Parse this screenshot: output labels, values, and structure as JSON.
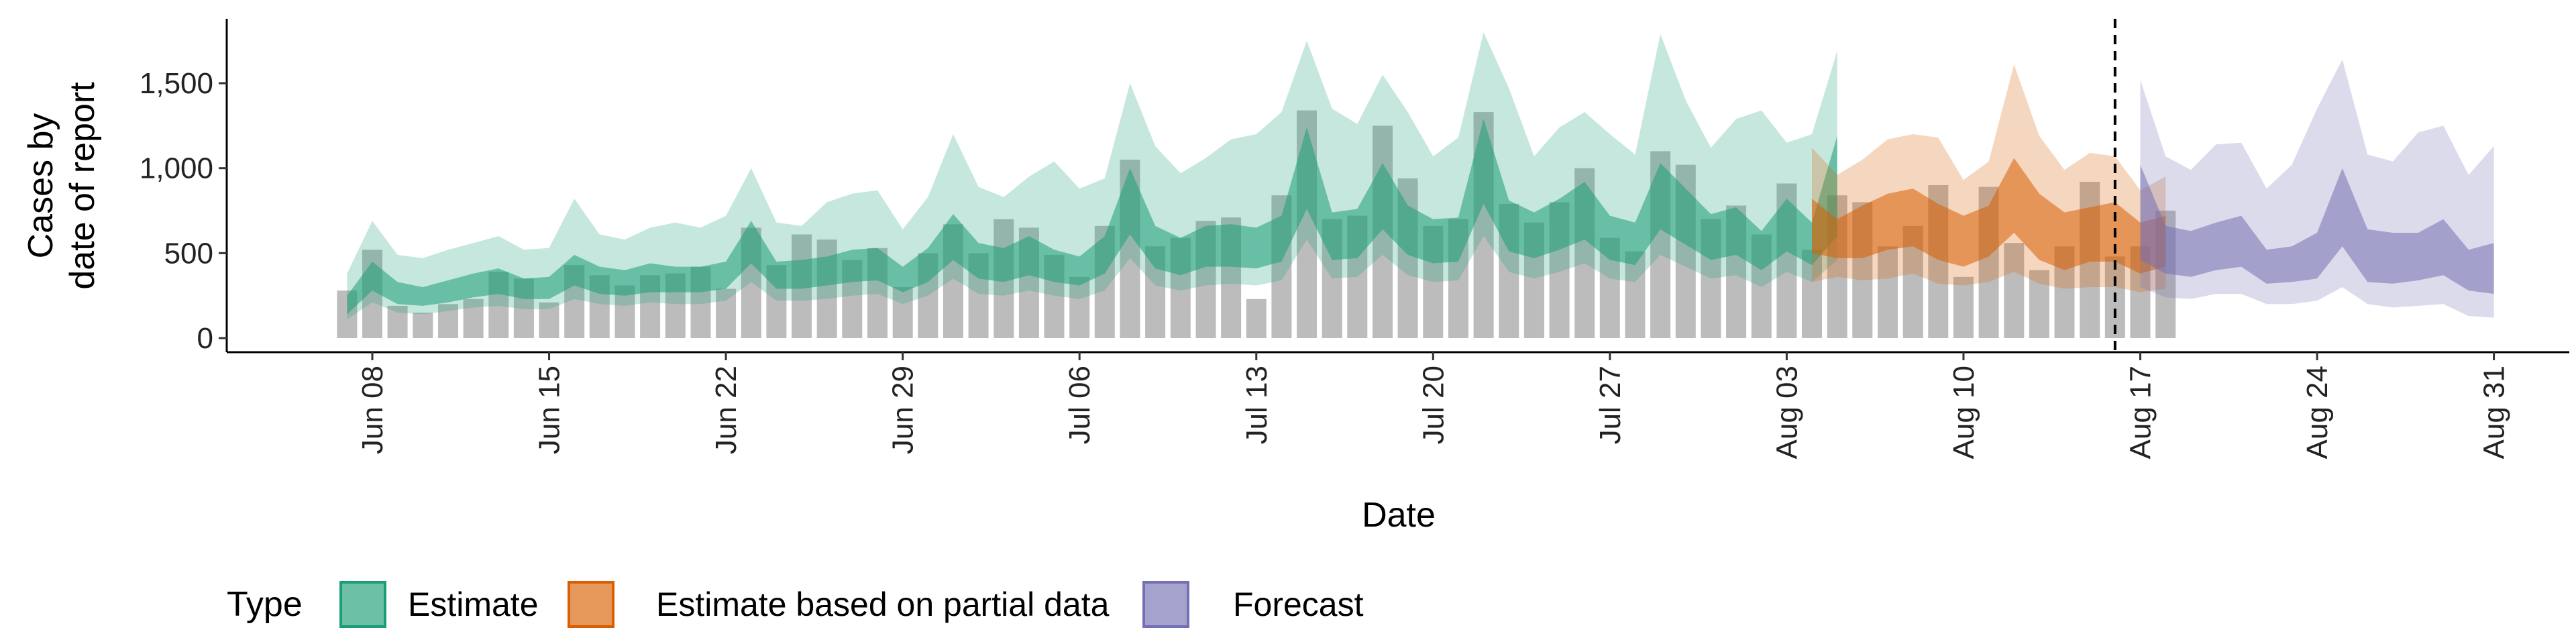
{
  "chart_data": {
    "type": "area",
    "xlabel": "Date",
    "ylabel": [
      "Cases by",
      "date of report"
    ],
    "ylim": [
      0,
      1870
    ],
    "xlim": [
      "2020-06-03",
      "2020-09-01"
    ],
    "y_ticks": [
      0,
      500,
      1000,
      1500
    ],
    "y_tick_labels": [
      "0",
      "500",
      "1,000",
      "1,500"
    ],
    "x_ticks": [
      "2020-06-08",
      "2020-06-15",
      "2020-06-22",
      "2020-06-29",
      "2020-07-06",
      "2020-07-13",
      "2020-07-20",
      "2020-07-27",
      "2020-08-03",
      "2020-08-10",
      "2020-08-17",
      "2020-08-24",
      "2020-08-31"
    ],
    "x_tick_labels": [
      "Jun 08",
      "Jun 15",
      "Jun 22",
      "Jun 29",
      "Jul 06",
      "Jul 13",
      "Jul 20",
      "Jul 27",
      "Aug 03",
      "Aug 10",
      "Aug 17",
      "Aug 24",
      "Aug 31"
    ],
    "vline_date": "2020-08-16",
    "grid": false,
    "legend": {
      "title": "Type",
      "placement": "bottom",
      "items": [
        {
          "label": "Estimate",
          "key": "estimate"
        },
        {
          "label": "Estimate based on partial data",
          "key": "partial"
        },
        {
          "label": "Forecast",
          "key": "forecast"
        }
      ]
    },
    "colors": {
      "estimate": "#1b9e77",
      "partial": "#d95f02",
      "forecast": "#7570b3",
      "bars": "#a6a6a6",
      "vline": "#000000"
    },
    "bars": {
      "start_date": "2020-06-07",
      "values": [
        280,
        520,
        190,
        150,
        200,
        230,
        390,
        350,
        210,
        430,
        370,
        310,
        370,
        380,
        420,
        290,
        650,
        430,
        610,
        580,
        460,
        530,
        300,
        500,
        670,
        500,
        700,
        650,
        490,
        360,
        660,
        1050,
        540,
        590,
        690,
        710,
        230,
        840,
        1340,
        700,
        720,
        1250,
        940,
        660,
        700,
        1330,
        790,
        680,
        800,
        1000,
        590,
        510,
        1100,
        1020,
        700,
        780,
        610,
        910,
        520,
        840,
        800,
        540,
        660,
        900,
        360,
        890,
        560,
        400,
        540,
        920,
        480,
        540,
        750
      ]
    },
    "series": [
      {
        "name": "Estimate",
        "key": "estimate",
        "start_date": "2020-06-07",
        "median": [
          190,
          360,
          260,
          240,
          270,
          300,
          330,
          280,
          290,
          390,
          330,
          320,
          350,
          330,
          330,
          360,
          550,
          360,
          360,
          380,
          410,
          420,
          330,
          420,
          580,
          440,
          420,
          470,
          410,
          380,
          470,
          790,
          520,
          460,
          520,
          530,
          510,
          570,
          980,
          580,
          600,
          820,
          620,
          550,
          560,
          1020,
          640,
          590,
          650,
          730,
          570,
          540,
          820,
          700,
          580,
          610,
          500,
          650,
          540,
          780
        ],
        "lower50": [
          140,
          280,
          200,
          190,
          210,
          240,
          260,
          230,
          230,
          310,
          260,
          250,
          270,
          270,
          270,
          290,
          440,
          290,
          290,
          310,
          330,
          340,
          270,
          330,
          460,
          350,
          330,
          370,
          330,
          310,
          380,
          610,
          410,
          370,
          420,
          420,
          410,
          450,
          760,
          460,
          470,
          640,
          490,
          440,
          450,
          790,
          510,
          470,
          520,
          580,
          460,
          430,
          640,
          550,
          460,
          490,
          400,
          510,
          430,
          600
        ],
        "upper50": [
          250,
          450,
          330,
          300,
          340,
          380,
          410,
          350,
          360,
          490,
          420,
          400,
          440,
          420,
          420,
          450,
          690,
          450,
          460,
          480,
          520,
          530,
          420,
          530,
          730,
          560,
          530,
          600,
          520,
          480,
          600,
          1000,
          660,
          590,
          660,
          670,
          650,
          720,
          1240,
          740,
          760,
          1030,
          780,
          700,
          710,
          1290,
          810,
          740,
          820,
          920,
          720,
          680,
          1030,
          880,
          730,
          770,
          630,
          820,
          680,
          1190
        ],
        "lower90": [
          110,
          210,
          150,
          140,
          160,
          180,
          190,
          170,
          170,
          230,
          200,
          190,
          210,
          200,
          200,
          220,
          330,
          220,
          220,
          230,
          250,
          260,
          200,
          250,
          350,
          260,
          250,
          280,
          250,
          230,
          280,
          470,
          310,
          280,
          310,
          320,
          310,
          340,
          580,
          350,
          360,
          490,
          370,
          330,
          340,
          600,
          390,
          350,
          390,
          440,
          350,
          330,
          490,
          420,
          350,
          370,
          300,
          390,
          330,
          460
        ],
        "upper90": [
          380,
          690,
          490,
          470,
          520,
          560,
          600,
          520,
          530,
          820,
          610,
          580,
          650,
          680,
          650,
          720,
          1000,
          680,
          660,
          800,
          850,
          870,
          640,
          830,
          1200,
          890,
          830,
          950,
          1040,
          880,
          940,
          1500,
          1130,
          970,
          1060,
          1170,
          1200,
          1330,
          1750,
          1350,
          1260,
          1550,
          1330,
          1070,
          1180,
          1800,
          1470,
          1070,
          1240,
          1330,
          1200,
          1080,
          1790,
          1400,
          1120,
          1290,
          1340,
          1150,
          1200,
          1690
        ]
      },
      {
        "name": "Estimate based on partial data",
        "key": "partial",
        "start_date": "2020-08-04",
        "median": [
          650,
          560,
          620,
          800,
          860,
          700,
          620,
          700,
          970,
          680,
          560,
          690,
          660,
          500,
          580
        ],
        "lower50": [
          500,
          470,
          470,
          520,
          540,
          460,
          420,
          480,
          620,
          460,
          400,
          450,
          450,
          380,
          420
        ],
        "upper50": [
          820,
          700,
          780,
          850,
          880,
          790,
          720,
          780,
          1060,
          850,
          740,
          770,
          800,
          680,
          720
        ],
        "lower90": [
          330,
          360,
          340,
          350,
          380,
          320,
          310,
          330,
          390,
          320,
          290,
          300,
          300,
          270,
          290
        ],
        "upper90": [
          1120,
          960,
          1050,
          1170,
          1200,
          1180,
          930,
          1040,
          1610,
          1190,
          990,
          1090,
          1070,
          870,
          950
        ]
      },
      {
        "name": "Forecast",
        "key": "forecast",
        "start_date": "2020-08-17",
        "median": [
          590,
          470,
          450,
          520,
          580,
          440,
          410,
          470,
          790,
          470,
          450,
          460,
          520,
          420,
          340
        ],
        "lower50": [
          460,
          380,
          360,
          400,
          420,
          320,
          330,
          350,
          540,
          330,
          320,
          340,
          370,
          280,
          260
        ],
        "upper50": [
          1020,
          660,
          630,
          680,
          720,
          520,
          540,
          620,
          1000,
          640,
          620,
          620,
          700,
          520,
          560
        ],
        "lower90": [
          300,
          240,
          230,
          260,
          260,
          200,
          200,
          220,
          300,
          200,
          180,
          190,
          200,
          130,
          120
        ],
        "upper90": [
          1520,
          1070,
          990,
          1140,
          1150,
          880,
          1020,
          1350,
          1640,
          1080,
          1040,
          1210,
          1250,
          960,
          1130
        ]
      }
    ]
  }
}
